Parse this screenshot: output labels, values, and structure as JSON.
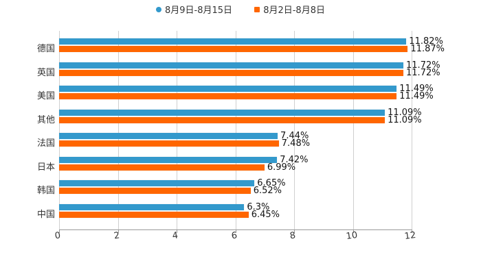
{
  "chart_data": {
    "type": "bar",
    "orientation": "horizontal",
    "title": "",
    "xlabel": "",
    "ylabel": "",
    "xlim": [
      0,
      12
    ],
    "x_ticks": [
      "0",
      "2",
      "4",
      "6",
      "8",
      "10",
      "12"
    ],
    "grid": true,
    "legend_position": "top",
    "categories": [
      "德国",
      "英国",
      "美国",
      "其他",
      "法国",
      "日本",
      "韩国",
      "中国"
    ],
    "series": [
      {
        "name": "8月9日-8月15日",
        "color": "#3399cc",
        "values": [
          11.82,
          11.72,
          11.49,
          11.09,
          7.44,
          7.42,
          6.65,
          6.3
        ],
        "labels": [
          "11.82%",
          "11.72%",
          "11.49%",
          "11.09%",
          "7.44%",
          "7.42%",
          "6.65%",
          "6.3%"
        ]
      },
      {
        "name": "8月2日-8月8日",
        "color": "#ff6600",
        "values": [
          11.87,
          11.72,
          11.49,
          11.09,
          7.48,
          6.99,
          6.52,
          6.45
        ],
        "labels": [
          "11.87%",
          "11.72%",
          "11.49%",
          "11.09%",
          "7.48%",
          "6.99%",
          "6.52%",
          "6.45%"
        ]
      }
    ]
  },
  "legend": [
    {
      "label": "8月9日-8月15日",
      "color": "#3399cc",
      "marker": "circle"
    },
    {
      "label": "8月2日-8月8日",
      "color": "#ff6600",
      "marker": "square"
    }
  ]
}
